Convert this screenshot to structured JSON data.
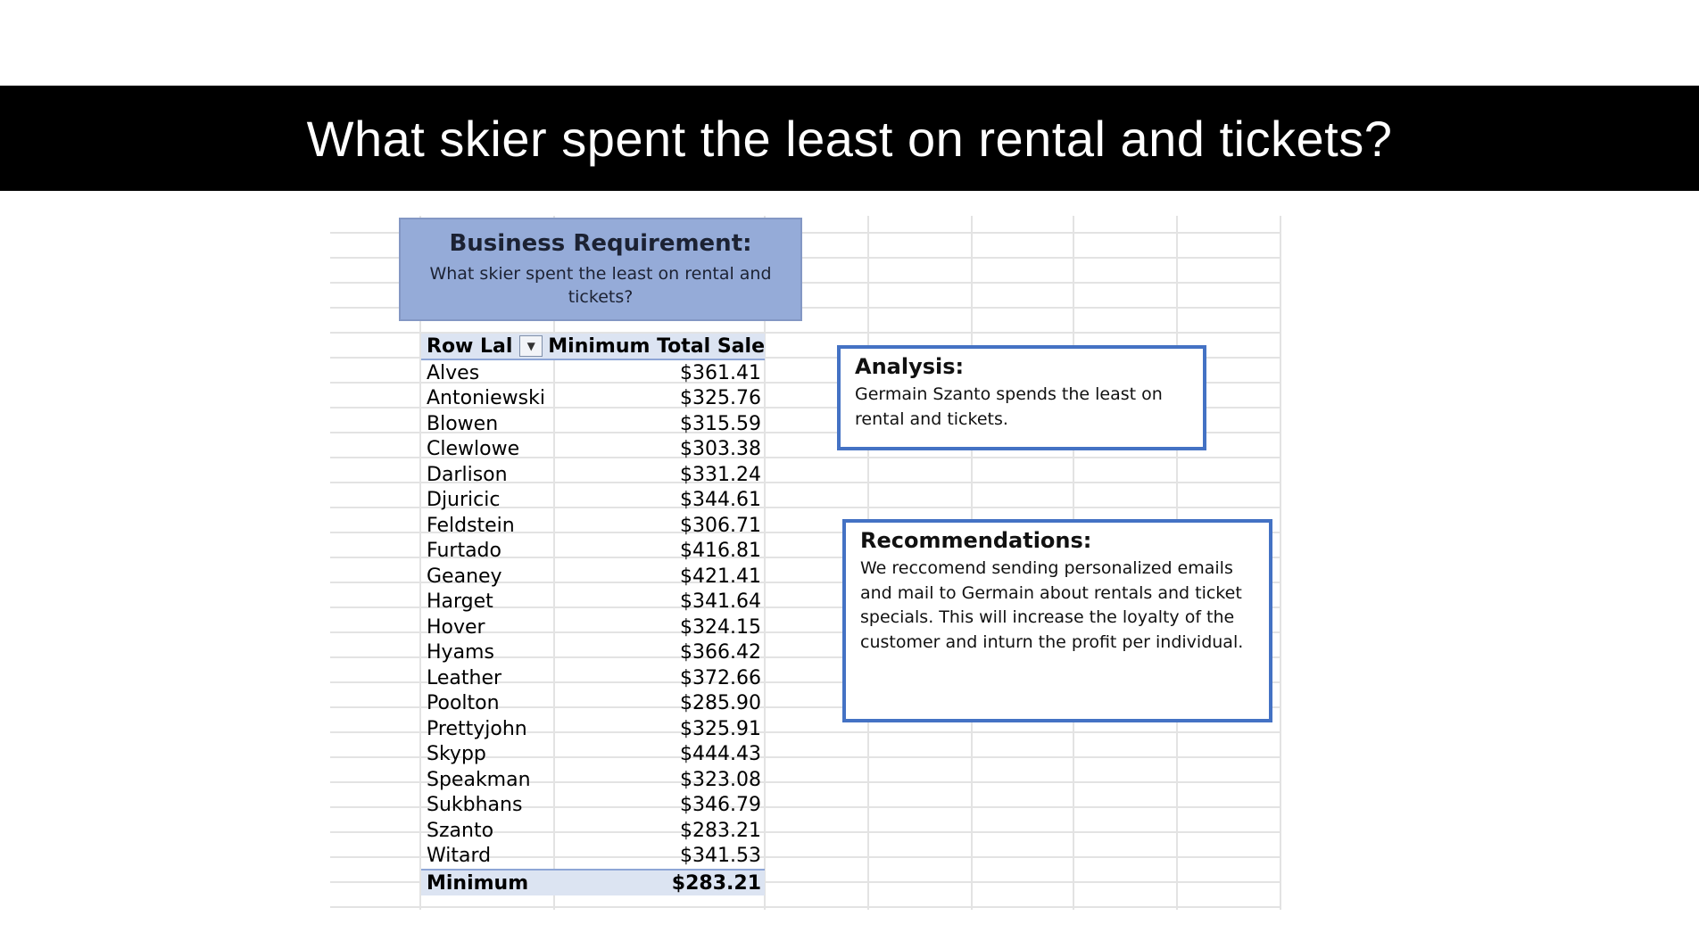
{
  "slide": {
    "title": "What skier spent the least on rental and tickets?"
  },
  "requirement": {
    "title": "Business Requirement:",
    "text": "What skier spent the least on rental and tickets?"
  },
  "pivot": {
    "row_label_header": "Row Lal",
    "value_header": "Minimum Total Sale",
    "rows": [
      {
        "name": "Alves",
        "value": "$361.41"
      },
      {
        "name": "Antoniewski",
        "value": "$325.76"
      },
      {
        "name": "Blowen",
        "value": "$315.59"
      },
      {
        "name": "Clewlowe",
        "value": "$303.38"
      },
      {
        "name": "Darlison",
        "value": "$331.24"
      },
      {
        "name": "Djuricic",
        "value": "$344.61"
      },
      {
        "name": "Feldstein",
        "value": "$306.71"
      },
      {
        "name": "Furtado",
        "value": "$416.81"
      },
      {
        "name": "Geaney",
        "value": "$421.41"
      },
      {
        "name": "Harget",
        "value": "$341.64"
      },
      {
        "name": "Hover",
        "value": "$324.15"
      },
      {
        "name": "Hyams",
        "value": "$366.42"
      },
      {
        "name": "Leather",
        "value": "$372.66"
      },
      {
        "name": "Poolton",
        "value": "$285.90"
      },
      {
        "name": "Prettyjohn",
        "value": "$325.91"
      },
      {
        "name": "Skypp",
        "value": "$444.43"
      },
      {
        "name": "Speakman",
        "value": "$323.08"
      },
      {
        "name": "Sukbhans",
        "value": "$346.79"
      },
      {
        "name": "Szanto",
        "value": "$283.21"
      },
      {
        "name": "Witard",
        "value": "$341.53"
      }
    ],
    "total_label": "Minimum",
    "total_value": "$283.21"
  },
  "analysis": {
    "title": "Analysis:",
    "text": "Germain Szanto spends the least on rental and tickets."
  },
  "recommendations": {
    "title": "Recommendations:",
    "text": "We reccomend sending personalized emails and mail to Germain about rentals and ticket specials. This will increase the loyalty of the customer and inturn the profit per individual."
  },
  "icons": {
    "filter_dropdown": "chevron-down-icon"
  }
}
